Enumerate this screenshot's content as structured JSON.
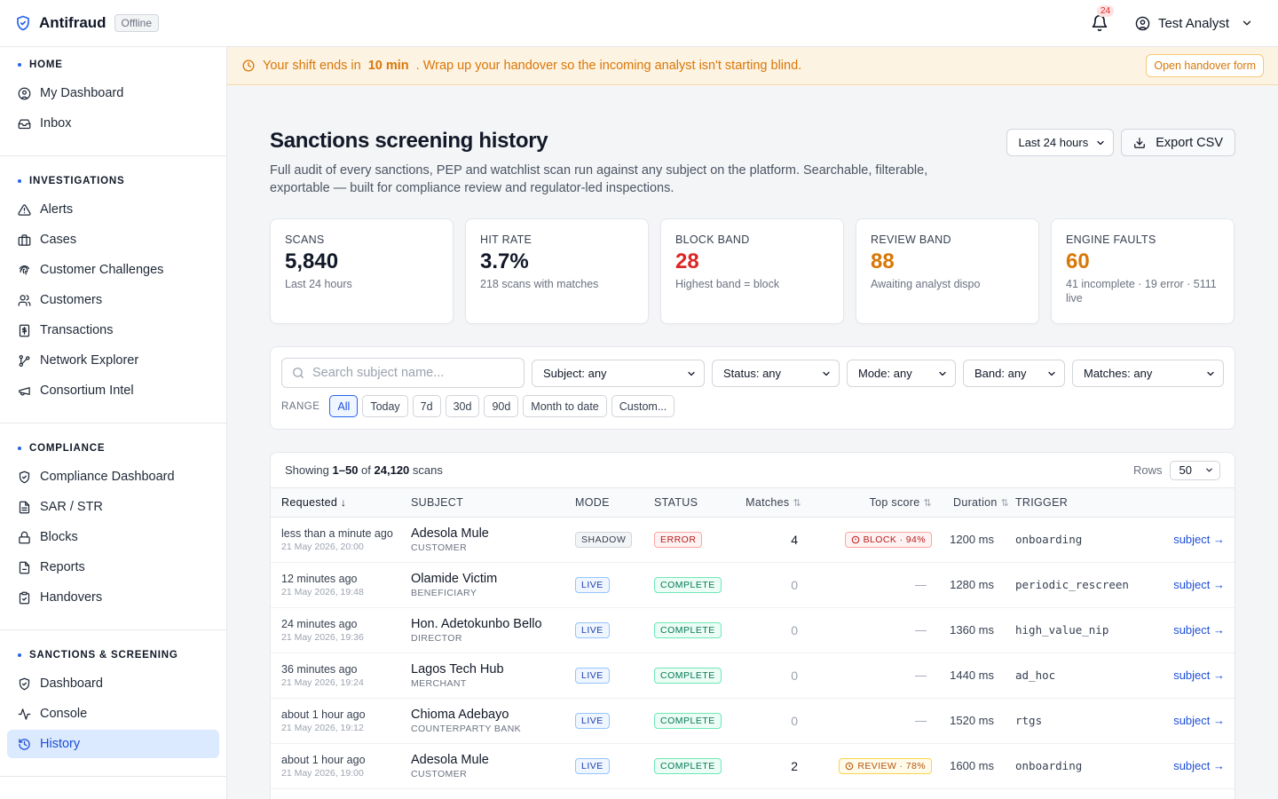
{
  "app": {
    "name": "Antifraud",
    "status": "Offline"
  },
  "header": {
    "notification_count": "24",
    "user_name": "Test Analyst"
  },
  "sidebar": {
    "sections": [
      {
        "title": "HOME",
        "items": [
          {
            "label": "My Dashboard",
            "icon": "user-circle-icon"
          },
          {
            "label": "Inbox",
            "icon": "inbox-icon"
          }
        ]
      },
      {
        "title": "INVESTIGATIONS",
        "items": [
          {
            "label": "Alerts",
            "icon": "alert-triangle-icon"
          },
          {
            "label": "Cases",
            "icon": "briefcase-icon"
          },
          {
            "label": "Customer Challenges",
            "icon": "fingerprint-icon"
          },
          {
            "label": "Customers",
            "icon": "users-icon"
          },
          {
            "label": "Transactions",
            "icon": "receipt-icon"
          },
          {
            "label": "Network Explorer",
            "icon": "network-icon"
          },
          {
            "label": "Consortium Intel",
            "icon": "megaphone-icon"
          }
        ]
      },
      {
        "title": "COMPLIANCE",
        "items": [
          {
            "label": "Compliance Dashboard",
            "icon": "shield-check-icon"
          },
          {
            "label": "SAR / STR",
            "icon": "file-text-icon"
          },
          {
            "label": "Blocks",
            "icon": "lock-icon"
          },
          {
            "label": "Reports",
            "icon": "file-icon"
          },
          {
            "label": "Handovers",
            "icon": "clipboard-check-icon"
          }
        ]
      },
      {
        "title": "SANCTIONS & SCREENING",
        "items": [
          {
            "label": "Dashboard",
            "icon": "shield-check-icon"
          },
          {
            "label": "Console",
            "icon": "activity-icon"
          },
          {
            "label": "History",
            "icon": "history-icon",
            "active": true
          }
        ]
      }
    ]
  },
  "banner": {
    "text_before": "Your shift ends in",
    "highlight": "10 min",
    "text_after": ". Wrap up your handover so the incoming analyst isn't starting blind.",
    "button_label": "Open handover form"
  },
  "page": {
    "title": "Sanctions screening history",
    "description": "Full audit of every sanctions, PEP and watchlist scan run against any subject on the platform. Searchable, filterable, exportable — built for compliance review and regulator-led inspections.",
    "period_select": "Last 24 hours",
    "export_label": "Export CSV"
  },
  "stats": [
    {
      "label": "SCANS",
      "value": "5,840",
      "sub": "Last 24 hours",
      "tone": "default"
    },
    {
      "label": "HIT RATE",
      "value": "3.7%",
      "sub": "218 scans with matches",
      "tone": "default"
    },
    {
      "label": "BLOCK BAND",
      "value": "28",
      "sub": "Highest band = block",
      "tone": "red"
    },
    {
      "label": "REVIEW BAND",
      "value": "88",
      "sub": "Awaiting analyst dispo",
      "tone": "orange"
    },
    {
      "label": "ENGINE FAULTS",
      "value": "60",
      "sub": "41 incomplete · 19 error · 5111 live",
      "tone": "orange"
    }
  ],
  "filters": {
    "search_placeholder": "Search subject name...",
    "selects": [
      "Subject: any",
      "Status: any",
      "Mode: any",
      "Band: any",
      "Matches: any"
    ],
    "range_label": "RANGE",
    "ranges": [
      "All",
      "Today",
      "7d",
      "30d",
      "90d",
      "Month to date",
      "Custom..."
    ],
    "active_range": "All"
  },
  "table": {
    "showing_prefix": "Showing",
    "showing_range": "1–50",
    "showing_of": "of",
    "total": "24,120",
    "showing_suffix": "scans",
    "rows_label": "Rows",
    "rows_value": "50",
    "columns": [
      "Requested",
      "SUBJECT",
      "MODE",
      "STATUS",
      "Matches",
      "Top score",
      "Duration",
      "TRIGGER"
    ],
    "rows": [
      {
        "rel": "less than a minute ago",
        "abs": "21 May 2026, 20:00",
        "name": "Adesola Mule",
        "role": "CUSTOMER",
        "mode": "SHADOW",
        "status": "ERROR",
        "matches": "4",
        "score": "BLOCK · 94%",
        "score_type": "block",
        "duration": "1200 ms",
        "trigger": "onboarding",
        "link": "subject →"
      },
      {
        "rel": "12 minutes ago",
        "abs": "21 May 2026, 19:48",
        "name": "Olamide Victim",
        "role": "BENEFICIARY",
        "mode": "LIVE",
        "status": "COMPLETE",
        "matches": "0",
        "score": "—",
        "score_type": "none",
        "duration": "1280 ms",
        "trigger": "periodic_rescreen",
        "link": "subject →"
      },
      {
        "rel": "24 minutes ago",
        "abs": "21 May 2026, 19:36",
        "name": "Hon. Adetokunbo Bello",
        "role": "DIRECTOR",
        "mode": "LIVE",
        "status": "COMPLETE",
        "matches": "0",
        "score": "—",
        "score_type": "none",
        "duration": "1360 ms",
        "trigger": "high_value_nip",
        "link": "subject →"
      },
      {
        "rel": "36 minutes ago",
        "abs": "21 May 2026, 19:24",
        "name": "Lagos Tech Hub",
        "role": "MERCHANT",
        "mode": "LIVE",
        "status": "COMPLETE",
        "matches": "0",
        "score": "—",
        "score_type": "none",
        "duration": "1440 ms",
        "trigger": "ad_hoc",
        "link": "subject →"
      },
      {
        "rel": "about 1 hour ago",
        "abs": "21 May 2026, 19:12",
        "name": "Chioma Adebayo",
        "role": "COUNTERPARTY BANK",
        "mode": "LIVE",
        "status": "COMPLETE",
        "matches": "0",
        "score": "—",
        "score_type": "none",
        "duration": "1520 ms",
        "trigger": "rtgs",
        "link": "subject →"
      },
      {
        "rel": "about 1 hour ago",
        "abs": "21 May 2026, 19:00",
        "name": "Adesola Mule",
        "role": "CUSTOMER",
        "mode": "LIVE",
        "status": "COMPLETE",
        "matches": "2",
        "score": "REVIEW · 78%",
        "score_type": "review",
        "duration": "1600 ms",
        "trigger": "onboarding",
        "link": "subject →"
      }
    ]
  },
  "colors": {
    "accent": "#2563eb",
    "danger": "#dc2626",
    "warning": "#d97706",
    "banner_bg": "#fdf3e3"
  }
}
